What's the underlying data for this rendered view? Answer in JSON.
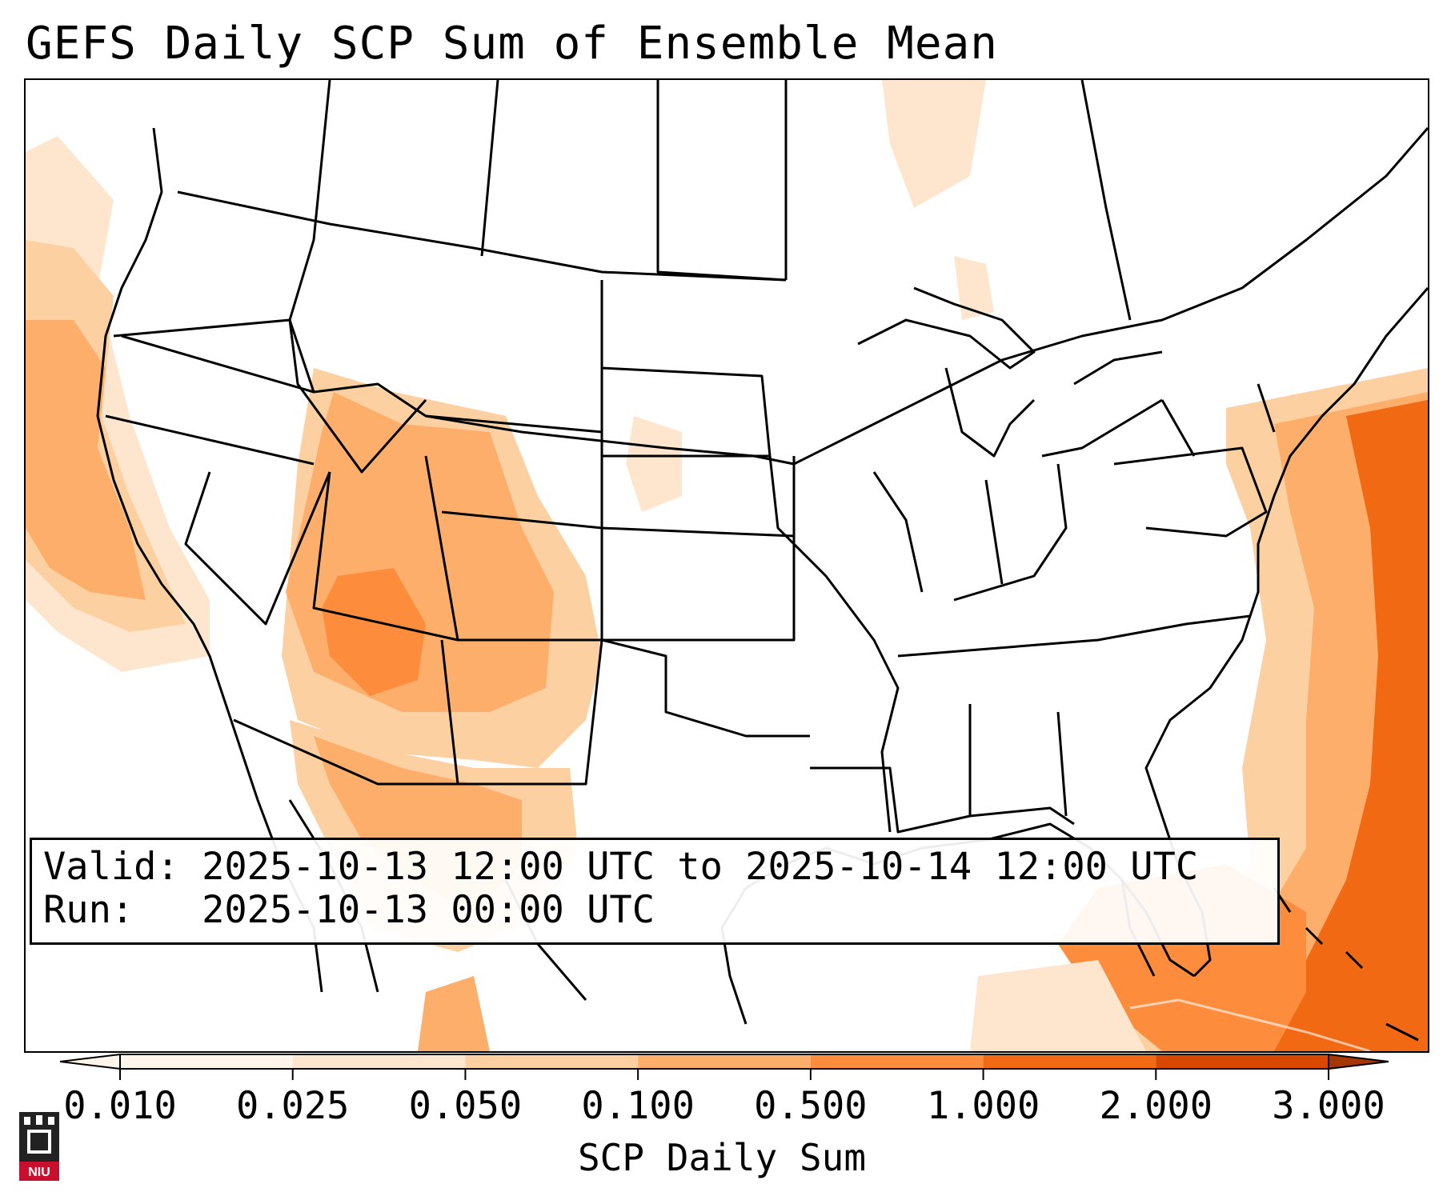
{
  "title": "GEFS Daily SCP Sum of Ensemble Mean",
  "info": {
    "valid_line": "Valid: 2025-10-13 12:00 UTC to 2025-10-14 12:00 UTC",
    "run_line": "Run:   2025-10-13 00:00 UTC"
  },
  "colorbar": {
    "label": "SCP Daily Sum",
    "ticks": [
      "0.010",
      "0.025",
      "0.050",
      "0.100",
      "0.500",
      "1.000",
      "2.000",
      "3.000"
    ],
    "colors": [
      "#fff5eb",
      "#fee6ce",
      "#fdd0a2",
      "#fdae6b",
      "#fd8d3c",
      "#f16913",
      "#d94801",
      "#a63603"
    ],
    "extend": "both"
  },
  "map": {
    "region": "Continental United States",
    "field": "SCP daily sum (ensemble mean)",
    "shaded_areas": [
      {
        "area": "Pacific coast offshore",
        "level": "0.100"
      },
      {
        "area": "Utah / Colorado / Arizona / New Mexico",
        "level": "0.500"
      },
      {
        "area": "Northern Mexico",
        "level": "0.500"
      },
      {
        "area": "Atlantic offshore east of Carolinas",
        "level": "1.000"
      },
      {
        "area": "Bahamas / Cuba",
        "level": "1.000"
      }
    ]
  },
  "logo": {
    "text": "NIU"
  }
}
